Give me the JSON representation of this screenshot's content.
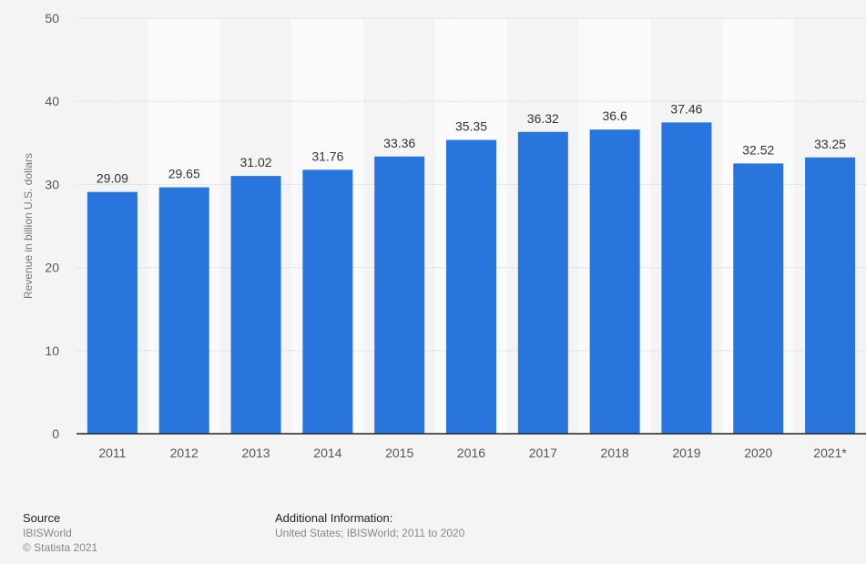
{
  "chart_data": {
    "type": "bar",
    "title": "",
    "xlabel": "",
    "ylabel": "Revenue in billion U.S. dollars",
    "categories": [
      "2011",
      "2012",
      "2013",
      "2014",
      "2015",
      "2016",
      "2017",
      "2018",
      "2019",
      "2020",
      "2021*"
    ],
    "values": [
      29.09,
      29.65,
      31.02,
      31.76,
      33.36,
      35.35,
      36.32,
      36.6,
      37.46,
      32.52,
      33.25
    ],
    "value_labels": [
      "29.09",
      "29.65",
      "31.02",
      "31.76",
      "33.36",
      "35.35",
      "36.32",
      "36.6",
      "37.46",
      "32.52",
      "33.25"
    ],
    "ylim": [
      0,
      50
    ],
    "yticks": [
      "0",
      "10",
      "20",
      "30",
      "40",
      "50"
    ],
    "grid": true,
    "bar_color": "#2876dd"
  },
  "footer": {
    "source_heading": "Source",
    "source": "IBISWorld",
    "copyright": "© Statista 2021",
    "additional_heading": "Additional Information:",
    "additional": "United States; IBISWorld; 2011 to 2020"
  }
}
